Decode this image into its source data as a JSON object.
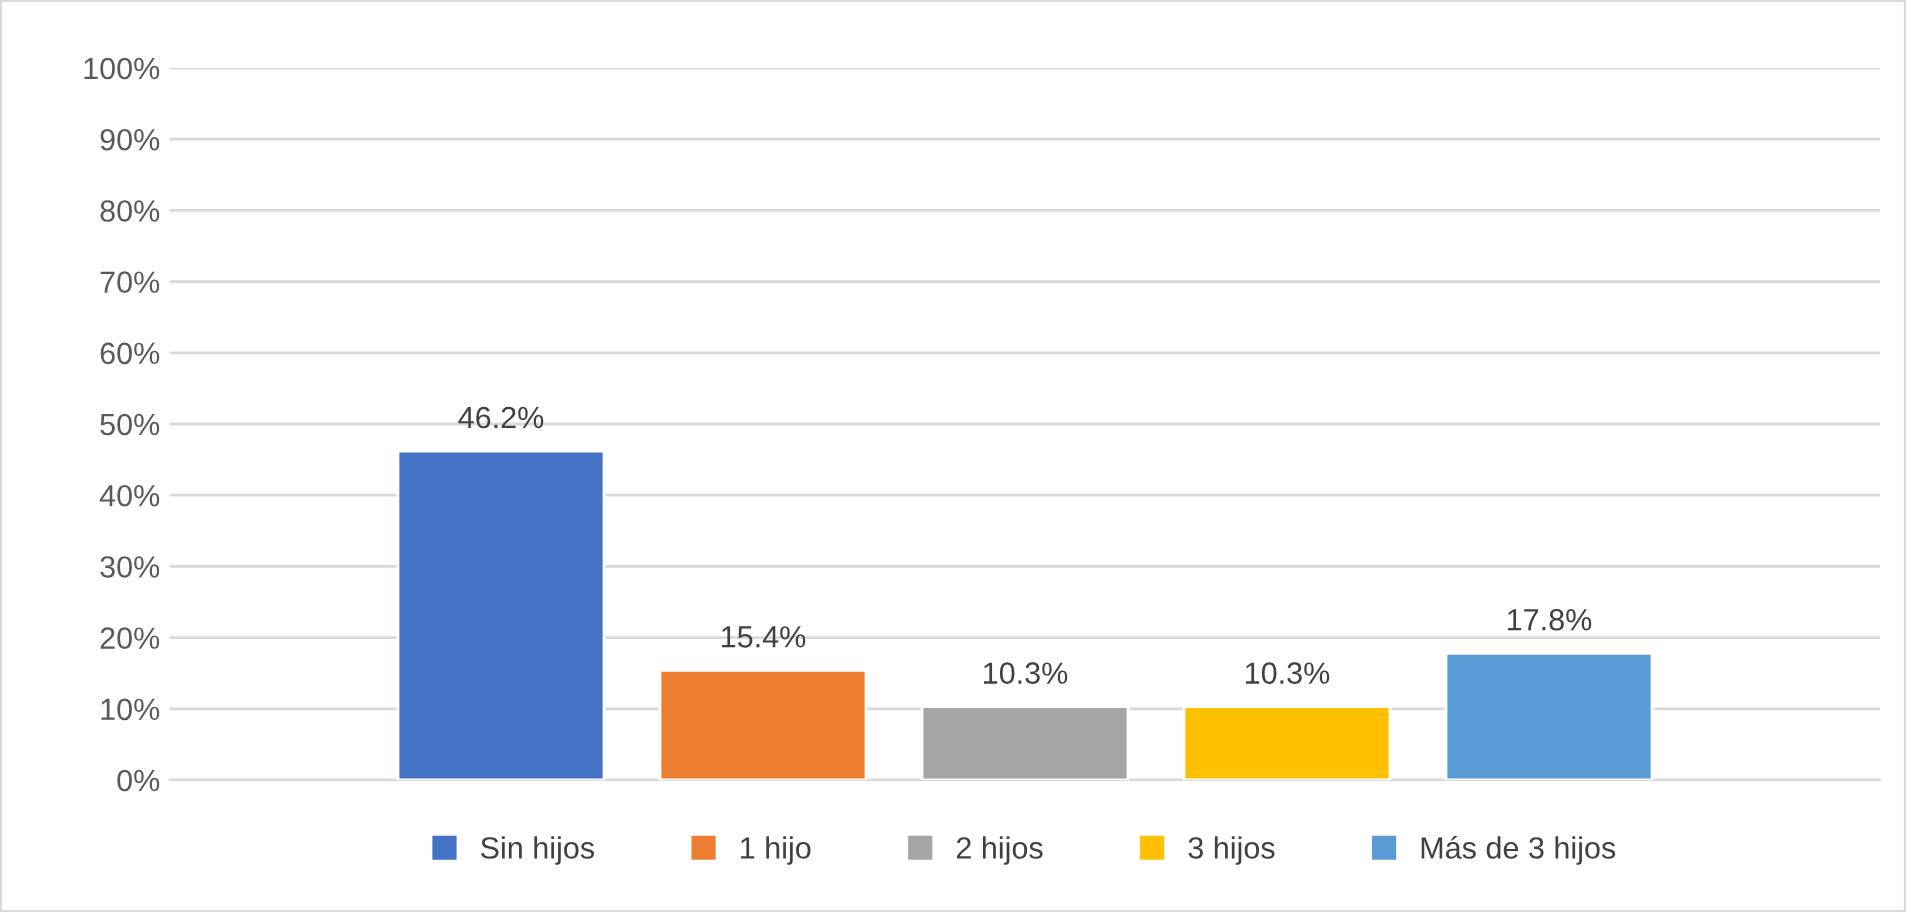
{
  "chart_data": {
    "type": "bar",
    "categories": [
      null
    ],
    "series": [
      {
        "name": "Sin hijos",
        "color": "#4472c4",
        "values": [
          46.2
        ],
        "value_labels": [
          "46.2%"
        ]
      },
      {
        "name": "1 hijo",
        "color": "#ed7d31",
        "values": [
          15.4
        ],
        "value_labels": [
          "15.4%"
        ]
      },
      {
        "name": "2 hijos",
        "color": "#a5a5a5",
        "values": [
          10.3
        ],
        "value_labels": [
          "10.3%"
        ]
      },
      {
        "name": "3 hijos",
        "color": "#ffc000",
        "values": [
          10.3
        ],
        "value_labels": [
          "10.3%"
        ]
      },
      {
        "name": "Más de 3 hijos",
        "color": "#5b9bd5",
        "values": [
          17.8
        ],
        "value_labels": [
          "17.8%"
        ]
      }
    ],
    "ylim": [
      0,
      100
    ],
    "yticks": [
      {
        "value": 0,
        "label": "0%"
      },
      {
        "value": 10,
        "label": "10%"
      },
      {
        "value": 20,
        "label": "20%"
      },
      {
        "value": 30,
        "label": "30%"
      },
      {
        "value": 40,
        "label": "40%"
      },
      {
        "value": 50,
        "label": "50%"
      },
      {
        "value": 60,
        "label": "60%"
      },
      {
        "value": 70,
        "label": "70%"
      },
      {
        "value": 80,
        "label": "80%"
      },
      {
        "value": 90,
        "label": "90%"
      },
      {
        "value": 100,
        "label": "100%"
      }
    ],
    "grid": "y",
    "legend": "bottom"
  }
}
